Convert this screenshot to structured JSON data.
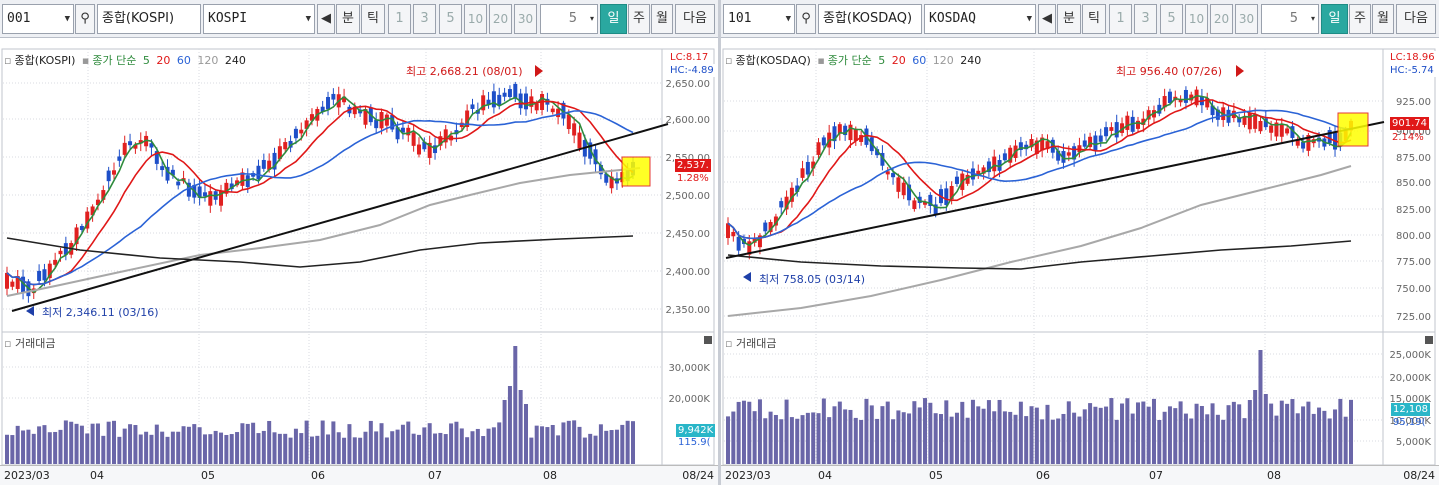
{
  "left": {
    "code": "001",
    "market_label": "종합(KOSPI)",
    "index_name": "KOSPI",
    "period_buttons": [
      "분",
      "틱",
      "1",
      "3",
      "5",
      "10",
      "20",
      "30"
    ],
    "interval_value": "5",
    "view_tabs": [
      "일",
      "주",
      "월",
      "다음"
    ],
    "active_tab": "일",
    "legend": {
      "name": "종합(KOSPI)",
      "ma_label": "종가 단순",
      "ma": [
        "5",
        "20",
        "60",
        "120",
        "240"
      ]
    },
    "lc": "LC:8.17",
    "hc": "HC:-4.89",
    "high_note": "최고 2,668.21 (08/01)",
    "low_note": "최저 2,346.11 (03/16)",
    "price_ticks": [
      "2,650.00",
      "2,600.00",
      "2,550.00",
      "2,500.00",
      "2,450.00",
      "2,400.00",
      "2,350.00"
    ],
    "current_price": "2,537.",
    "current_change": "1.28%",
    "volume_title": "거래대금",
    "volume_ticks": [
      "30,000K",
      "20,000K"
    ],
    "volume_current": "9,942K",
    "volume_ma": "115.9(",
    "months": [
      "2023/03",
      "04",
      "05",
      "06",
      "07",
      "08"
    ],
    "date_caption": "08/24"
  },
  "right": {
    "code": "101",
    "market_label": "종합(KOSDAQ)",
    "index_name": "KOSDAQ",
    "period_buttons": [
      "분",
      "틱",
      "1",
      "3",
      "5",
      "10",
      "20",
      "30"
    ],
    "interval_value": "5",
    "view_tabs": [
      "일",
      "주",
      "월",
      "다음"
    ],
    "active_tab": "일",
    "legend": {
      "name": "종합(KOSDAQ)",
      "ma_label": "종가 단순",
      "ma": [
        "5",
        "20",
        "60",
        "120",
        "240"
      ]
    },
    "lc": "LC:18.96",
    "hc": "HC:-5.74",
    "high_note": "최고 956.40 (07/26)",
    "low_note": "최저 758.05 (03/14)",
    "price_ticks": [
      "925.00",
      "900.00",
      "875.00",
      "850.00",
      "825.00",
      "800.00",
      "775.00",
      "750.00",
      "725.00"
    ],
    "current_price": "901.74",
    "current_change": "2.14%",
    "volume_title": "거래대금",
    "volume_ticks": [
      "25,000K",
      "20,000K",
      "15,000K",
      "10,000K",
      "5,000K"
    ],
    "volume_current": "12,108",
    "volume_ma": "95,19(",
    "months": [
      "2023/03",
      "04",
      "05",
      "06",
      "07",
      "08"
    ],
    "date_caption": "08/24"
  },
  "colors": {
    "up": "#e02020",
    "down": "#1e4fc8",
    "ma5": "#2e8b3c",
    "ma20": "#e01818",
    "ma60": "#2b63d6",
    "ma120": "#a8a8a8",
    "ma240": "#222222",
    "active": "#2aa8a0",
    "volume": "#6a66a8"
  }
}
